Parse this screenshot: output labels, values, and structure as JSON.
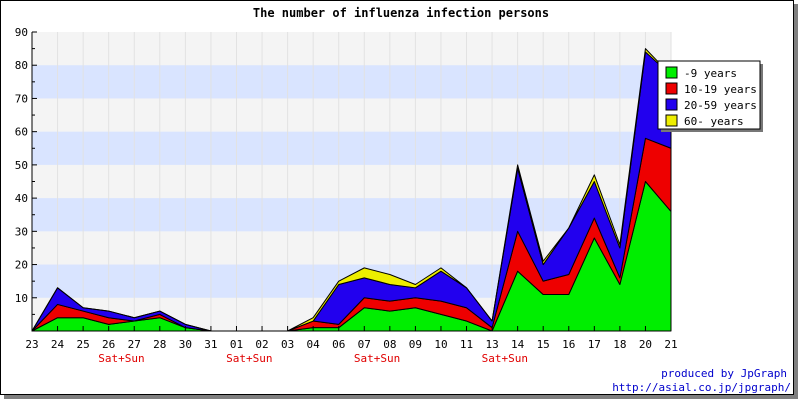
{
  "credits": {
    "line1": "produced by JpGraph",
    "line2": "http://asial.co.jp/jpgraph/"
  },
  "chart_data": {
    "type": "area",
    "stacked": true,
    "title": "The number of influenza infection persons",
    "xlabel": "",
    "ylabel": "",
    "ylim": [
      0,
      90
    ],
    "yticks": [
      10,
      20,
      30,
      40,
      50,
      60,
      70,
      80,
      90
    ],
    "grid": "horizontal bands",
    "legend_position": "top-right",
    "categories": [
      "23",
      "24",
      "25",
      "26",
      "27",
      "28",
      "30",
      "31",
      "01",
      "02",
      "03",
      "04",
      "06",
      "07",
      "08",
      "09",
      "10",
      "11",
      "13",
      "14",
      "15",
      "16",
      "17",
      "18",
      "20",
      "21"
    ],
    "weekend_labels": [
      {
        "after_index": 3,
        "text": "Sat+Sun"
      },
      {
        "after_index": 8,
        "text": "Sat+Sun"
      },
      {
        "after_index": 13,
        "text": "Sat+Sun"
      },
      {
        "after_index": 18,
        "text": "Sat+Sun"
      }
    ],
    "series": [
      {
        "name": "-9 years",
        "color": "#00ee00",
        "values": [
          0,
          4,
          4,
          2,
          3,
          4,
          1,
          0,
          0,
          0,
          0,
          1,
          1,
          7,
          6,
          7,
          5,
          3,
          0,
          18,
          11,
          11,
          28,
          14,
          45,
          36
        ]
      },
      {
        "name": "10-19 years",
        "color": "#ee0000",
        "values": [
          0,
          4,
          2,
          2,
          0,
          1,
          0,
          0,
          0,
          0,
          0,
          2,
          1,
          3,
          3,
          3,
          4,
          4,
          1,
          12,
          4,
          6,
          6,
          2,
          13,
          19
        ]
      },
      {
        "name": "20-59 years",
        "color": "#2200ee",
        "values": [
          0,
          5,
          1,
          2,
          1,
          1,
          1,
          0,
          0,
          0,
          0,
          0,
          12,
          6,
          5,
          3,
          9,
          6,
          2,
          19,
          5,
          14,
          11,
          9,
          26,
          22
        ]
      },
      {
        "name": "60- years",
        "color": "#eeee00",
        "values": [
          0,
          0,
          0,
          0,
          0,
          0,
          0,
          0,
          0,
          0,
          0,
          1,
          1,
          3,
          3,
          1,
          1,
          0,
          0,
          1,
          1,
          0,
          2,
          1,
          1,
          0
        ]
      }
    ]
  }
}
